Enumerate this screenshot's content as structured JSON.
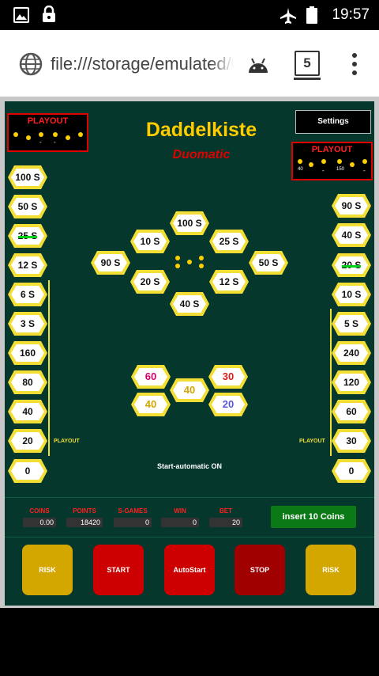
{
  "status_bar": {
    "time": "19:57"
  },
  "browser": {
    "url": "file:///storage/emulated/0/",
    "tab_count": "5"
  },
  "app": {
    "title": "Daddelkiste",
    "subtitle": "Duomatic",
    "settings_label": "Settings"
  },
  "playout": {
    "label": "PLAYOUT",
    "left_box_values": [
      "-",
      "-"
    ],
    "right_box_values": [
      "40",
      "-",
      "150",
      "-"
    ]
  },
  "left_column": [
    "100 S",
    "50 S",
    "25 S",
    "12 S",
    "6 S",
    "3 S",
    "160",
    "80",
    "40",
    "20",
    "0"
  ],
  "right_column": [
    "90 S",
    "40 S",
    "20 S",
    "10 S",
    "5 S",
    "240",
    "120",
    "60",
    "30",
    "0"
  ],
  "wheel": {
    "top": "100 S",
    "ul": "10 S",
    "ur": "25 S",
    "left": "90 S",
    "right": "50 S",
    "ll": "20 S",
    "lr": "12 S",
    "bottom": "40 S"
  },
  "risk_cluster": {
    "a": "60",
    "b": "30",
    "c": "40",
    "d": "40",
    "e": "20"
  },
  "playout_small": "PLAYOUT",
  "start_auto": "Start-automatic ON",
  "counters": {
    "coins_label": "COINS",
    "coins": "0.00",
    "points_label": "POINTS",
    "points": "18420",
    "sgames_label": "S-GAMES",
    "sgames": "0",
    "win_label": "WIN",
    "win": "0",
    "bet_label": "BET",
    "bet": "20"
  },
  "insert_label": "insert 10 Coins",
  "buttons": {
    "risk1": "RISK",
    "start": "START",
    "autostart": "AutoStart",
    "stop": "STOP",
    "risk2": "RISK"
  },
  "colors": {
    "board": "#05372c",
    "gold": "#f2de34",
    "red": "#cc0000"
  }
}
